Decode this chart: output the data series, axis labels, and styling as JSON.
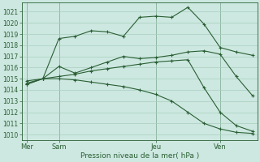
{
  "background_color": "#cde8e0",
  "grid_color": "#a8cfc0",
  "line_color": "#2a5f35",
  "vline_color": "#5a8a6a",
  "xlabel": "Pression niveau de la mer( hPa )",
  "ylim": [
    1009.5,
    1021.8
  ],
  "ytick_min": 1010,
  "ytick_max": 1021,
  "day_labels": [
    "Mer",
    "Sam",
    "Jeu",
    "Ven"
  ],
  "line1_y": [
    1014.8,
    1015.0,
    1018.6,
    1018.8,
    1019.3,
    1019.2,
    1018.8,
    1020.5,
    1020.6,
    1020.5,
    1021.4,
    1019.9,
    1017.8,
    1017.4,
    1017.1
  ],
  "line2_y": [
    1014.5,
    1015.0,
    1016.1,
    1015.5,
    1016.0,
    1016.5,
    1017.0,
    1016.8,
    1016.9,
    1017.1,
    1017.4,
    1017.5,
    1017.2,
    1015.2,
    1013.5
  ],
  "line3_y": [
    1014.6,
    1015.0,
    1015.2,
    1015.4,
    1015.7,
    1015.9,
    1016.1,
    1016.3,
    1016.5,
    1016.6,
    1016.7,
    1014.2,
    1012.0,
    1010.8,
    1010.3
  ],
  "line4_y": [
    1014.5,
    1015.0,
    1015.0,
    1014.9,
    1014.7,
    1014.5,
    1014.3,
    1014.0,
    1013.6,
    1013.0,
    1012.0,
    1011.0,
    1010.5,
    1010.2,
    1010.1
  ],
  "n_points": 15,
  "xlabel_fontsize": 6.5,
  "ytick_fontsize": 5.5,
  "xtick_fontsize": 6.0,
  "linewidth": 0.8,
  "markersize": 3.5
}
